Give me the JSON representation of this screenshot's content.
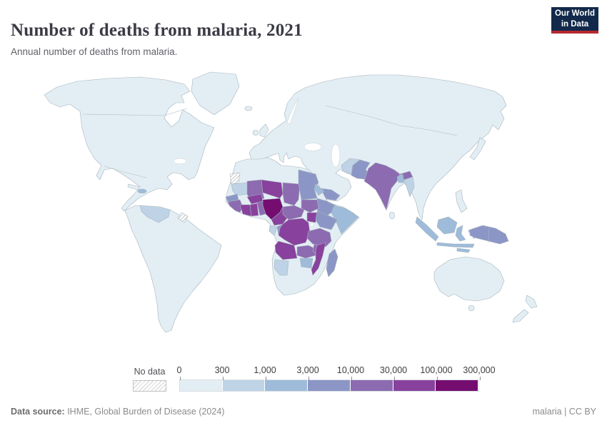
{
  "header": {
    "title": "Number of deaths from malaria, 2021",
    "subtitle": "Annual number of deaths from malaria.",
    "logo": {
      "line1": "Our World",
      "line2": "in Data",
      "bg_color": "#12294b",
      "accent_color": "#b5292f"
    }
  },
  "legend": {
    "no_data_label": "No data"
  },
  "footer": {
    "source_label": "Data source:",
    "source_value": " IHME, Global Burden of Disease (2024)",
    "right_text": "malaria | CC BY"
  },
  "chart_data": {
    "type": "choropleth",
    "title": "Number of deaths from malaria, 2021",
    "metric": "Annual number of deaths from malaria",
    "year": 2021,
    "legend_position": "bottom",
    "scale": "log-binned",
    "bin_edges": [
      0,
      300,
      1000,
      3000,
      10000,
      30000,
      100000,
      300000
    ],
    "bin_labels": [
      "0",
      "300",
      "1,000",
      "3,000",
      "10,000",
      "30,000",
      "100,000",
      "300,000"
    ],
    "bin_colors": [
      "#e3eef4",
      "#bfd3e6",
      "#9ebcda",
      "#8c96c6",
      "#8c6bb1",
      "#88419d",
      "#750d71"
    ],
    "no_data_label": "No data",
    "note": "Bin value N means deaths fall between bin_edges[N-1] and bin_edges[N]; 0 = no data; regions not listed fall in the lowest (0-300) bin",
    "country_bins": {
      "Nigeria": 7,
      "DR Congo": 6,
      "Niger": 6,
      "Burkina Faso": 6,
      "Cote d'Ivoire": 6,
      "Ghana": 6,
      "Cameroon": 6,
      "Uganda": 6,
      "Angola": 6,
      "Mozambique": 6,
      "Mali": 5,
      "Chad": 5,
      "Guinea": 5,
      "Togo & Benin": 5,
      "Central African Republic": 5,
      "South Sudan": 5,
      "Zambia": 5,
      "Malawi": 5,
      "Tanzania": 5,
      "India": 5,
      "Sudan": 4,
      "Ethiopia": 4,
      "Kenya": 4,
      "Senegal": 4,
      "Yemen": 4,
      "Pakistan": 4,
      "Papua New Guinea": 4,
      "Madagascar": 4,
      "Congo": 4,
      "Somalia": 3,
      "Eritrea": 3,
      "Zimbabwe": 3,
      "Bangladesh": 3,
      "Haiti": 3,
      "Indonesia": 3,
      "Mauritania": 2,
      "Gabon": 2,
      "Namibia": 2,
      "Venezuela": 2,
      "Myanmar": 2,
      "Afghanistan": 2,
      "Western Sahara": 0,
      "French Guiana": 0,
      "North America": 1,
      "Greenland": 1,
      "Cuba": 1,
      "South America": 1,
      "Rest of Eurasia": 1,
      "United Kingdom": 1,
      "Ireland": 1,
      "Iceland": 1,
      "Japan": 1,
      "Sri Lanka": 1,
      "Philippines": 1,
      "Australia": 1,
      "New Zealand": 1
    },
    "map_colors": {
      "ocean": "#ffffff",
      "border": "#a7b3bd",
      "no_data_hatch": "#d2d2d2"
    }
  }
}
